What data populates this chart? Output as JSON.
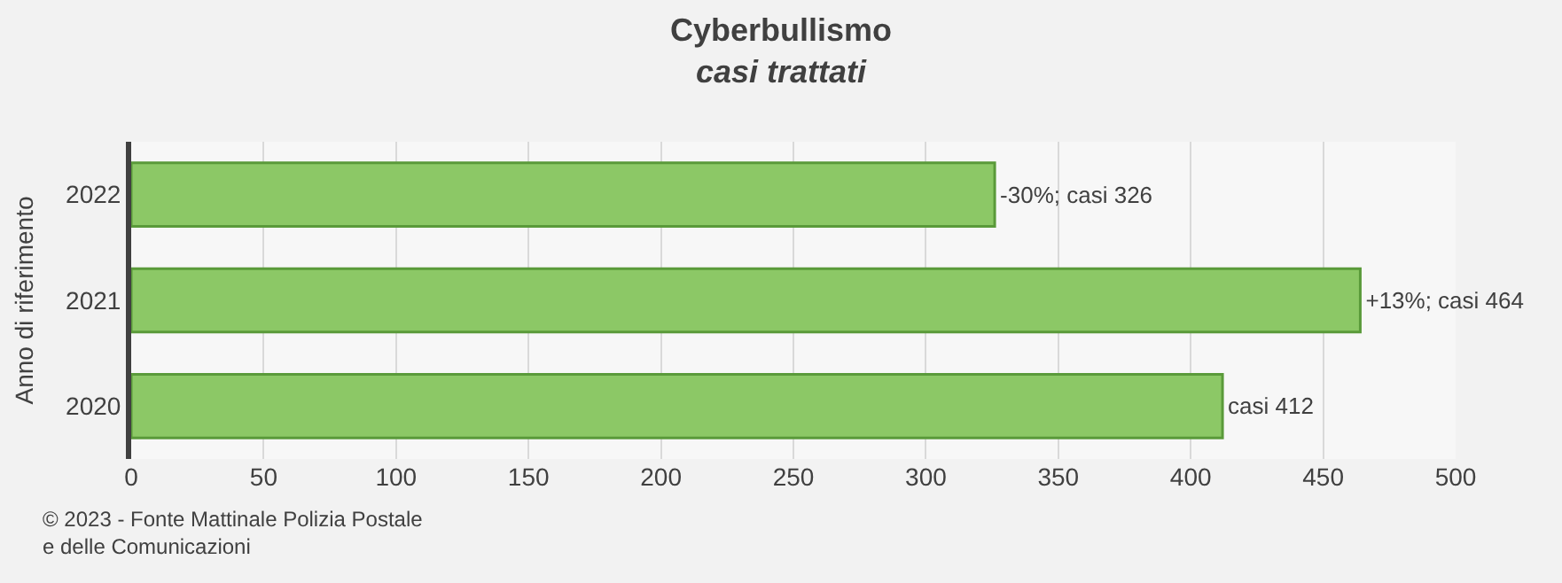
{
  "chart_data": {
    "type": "bar",
    "orientation": "horizontal",
    "title": "Cyberbullismo",
    "subtitle": "casi trattati",
    "ylabel": "Anno di riferimento",
    "categories": [
      "2022",
      "2021",
      "2020"
    ],
    "values": [
      326,
      464,
      412
    ],
    "value_labels": [
      "-30%; casi 326",
      "+13%; casi 464",
      "casi 412"
    ],
    "color": "#8cc866",
    "xlim": [
      0,
      500
    ],
    "xticks": [
      0,
      50,
      100,
      150,
      200,
      250,
      300,
      350,
      400,
      450,
      500
    ],
    "grid": "x",
    "annotations": [
      "© 2023 - Fonte Mattinale Polizia Postale\ne delle Comunicazioni"
    ]
  }
}
